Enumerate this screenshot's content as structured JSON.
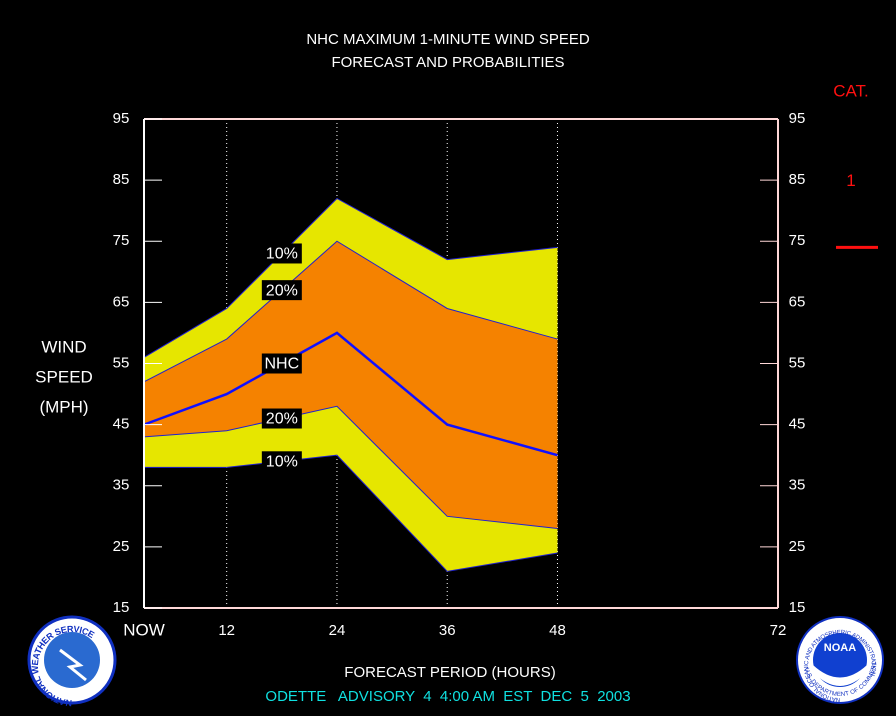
{
  "chart_data": {
    "type": "band",
    "title": [
      "NHC MAXIMUM 1-MINUTE WIND SPEED",
      "FORECAST AND PROBABILITIES"
    ],
    "y_label": [
      "WIND",
      "SPEED",
      "(MPH)"
    ],
    "x_label": "FORECAST PERIOD (HOURS)",
    "footer": "ODETTE   ADVISORY  4  4:00 AM  EST  DEC  5  2003",
    "x": [
      3,
      12,
      24,
      36,
      48
    ],
    "xlim": [
      3,
      72
    ],
    "xticks": [
      {
        "value": 3,
        "label": "NOW"
      },
      12,
      24,
      36,
      48,
      72
    ],
    "ylim": [
      15,
      95
    ],
    "yticks": [
      15,
      25,
      35,
      45,
      55,
      65,
      75,
      85,
      95
    ],
    "grid": true,
    "series": [
      {
        "name": "10%",
        "color": "#2020d0",
        "values": [
          56,
          64,
          82,
          72,
          74
        ]
      },
      {
        "name": "20%",
        "color": "#2020d0",
        "values": [
          52,
          59,
          75,
          64,
          59
        ]
      },
      {
        "name": "NHC",
        "color": "#1010ff",
        "values": [
          45,
          50,
          60,
          45,
          40
        ]
      },
      {
        "name": "20%",
        "color": "#2020d0",
        "values": [
          43,
          44,
          48,
          30,
          28
        ]
      },
      {
        "name": "10%",
        "color": "#2020d0",
        "values": [
          38,
          38,
          40,
          21,
          24
        ]
      }
    ],
    "band_colors": [
      "#e6e600",
      "#f58200"
    ],
    "category_title": "CAT.",
    "category_marks": [
      {
        "label": "1",
        "value": 74
      }
    ],
    "category_color": "#ff1010",
    "logos": {
      "left": "NATIONAL WEATHER SERVICE",
      "right_center": "NOAA",
      "right_ring": "NATIONAL OCEANIC AND ATMOSPHERIC ADMINISTRATION",
      "right_bottom": "U.S. DEPARTMENT OF COMMERCE"
    }
  }
}
